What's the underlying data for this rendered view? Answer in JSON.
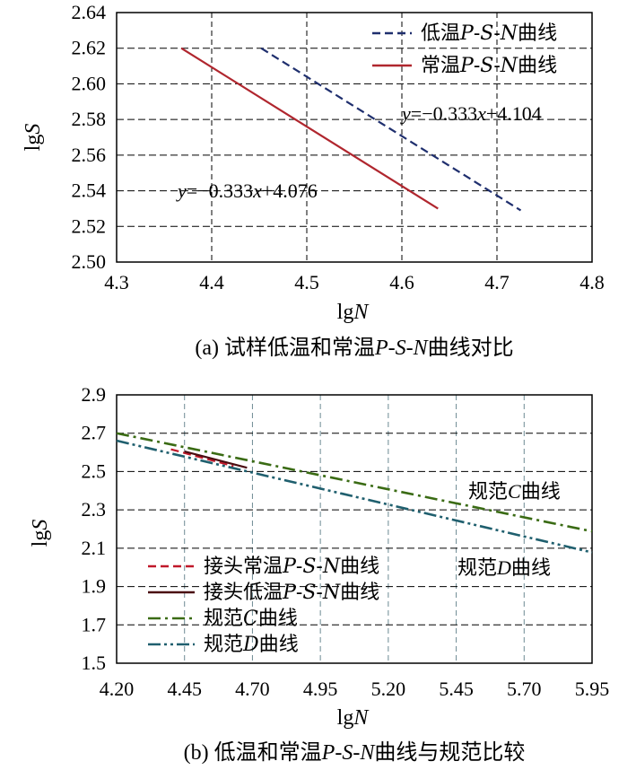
{
  "chart_data": [
    {
      "type": "line",
      "caption": "(a) 试样低温和常温P-S-N曲线对比",
      "xlabel": "lgN",
      "ylabel": "lgS",
      "xlim": [
        4.3,
        4.8
      ],
      "ylim": [
        2.5,
        2.64
      ],
      "xticks": [
        "4.3",
        "4.4",
        "4.5",
        "4.6",
        "4.7",
        "4.8"
      ],
      "yticks": [
        "2.50",
        "2.52",
        "2.54",
        "2.56",
        "2.58",
        "2.60",
        "2.62",
        "2.64"
      ],
      "grid": true,
      "legend_position": "top-right",
      "series": [
        {
          "name": "低温P-S-N曲线",
          "color": "#1f2f6e",
          "dash": "dashed",
          "x": [
            4.452,
            4.725
          ],
          "y": [
            2.62,
            2.529
          ]
        },
        {
          "name": "常温P-S-N曲线",
          "color": "#b0262e",
          "dash": "solid",
          "x": [
            4.368,
            4.638
          ],
          "y": [
            2.62,
            2.53
          ]
        }
      ],
      "annotations": [
        {
          "text": "y=−0.333x+4.104",
          "series": "低温P-S-N曲线"
        },
        {
          "text": "y=−0.333x+4.076",
          "series": "常温P-S-N曲线"
        }
      ]
    },
    {
      "type": "line",
      "caption": "(b) 低温和常温P-S-N曲线与规范比较",
      "xlabel": "lgN",
      "ylabel": "lgS",
      "xlim": [
        4.2,
        5.95
      ],
      "ylim": [
        1.5,
        2.9
      ],
      "xticks": [
        "4.20",
        "4.45",
        "4.70",
        "4.95",
        "5.20",
        "5.45",
        "5.70",
        "5.95"
      ],
      "yticks": [
        "1.5",
        "1.7",
        "1.9",
        "2.1",
        "2.3",
        "2.5",
        "2.7",
        "2.9"
      ],
      "grid": true,
      "legend_position": "bottom-left",
      "series": [
        {
          "name": "接头常温P-S-N曲线",
          "color": "#c0182a",
          "dash": "dashed",
          "x": [
            4.4,
            4.63
          ],
          "y": [
            2.616,
            2.528
          ]
        },
        {
          "name": "接头低温P-S-N曲线",
          "color": "#4a0d12",
          "dash": "solid",
          "x": [
            4.45,
            4.68
          ],
          "y": [
            2.605,
            2.52
          ]
        },
        {
          "name": "规范C曲线",
          "color": "#3a6b14",
          "dash": "dashdot",
          "x": [
            4.2,
            5.95
          ],
          "y": [
            2.7,
            2.188
          ]
        },
        {
          "name": "规范D曲线",
          "color": "#1f5f6e",
          "dash": "dashdotdot",
          "x": [
            4.2,
            5.95
          ],
          "y": [
            2.661,
            2.078
          ]
        }
      ],
      "annotations": [
        {
          "text": "规范C曲线",
          "series": "规范C曲线"
        },
        {
          "text": "规范D曲线",
          "series": "规范D曲线"
        }
      ]
    }
  ]
}
